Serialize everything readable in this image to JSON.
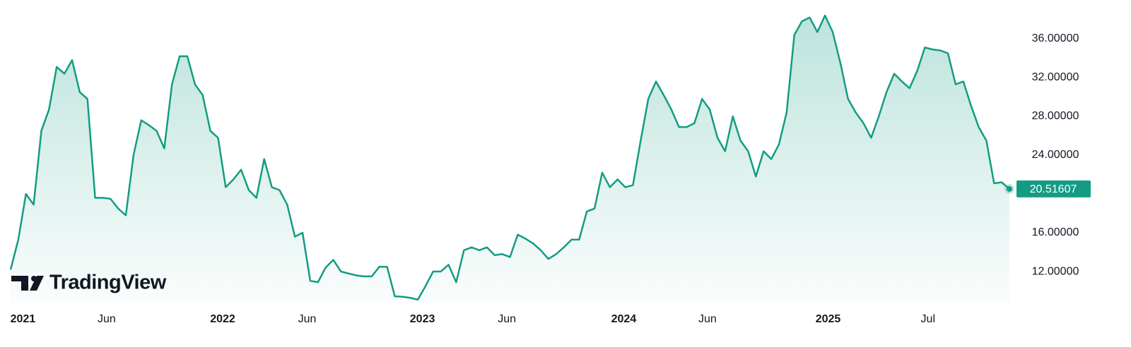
{
  "chart_data": {
    "type": "line",
    "watermark": "TradingView",
    "color": "#139c83",
    "values": [
      12.2,
      15.3,
      20.0,
      18.9,
      26.5,
      28.7,
      33.1,
      32.4,
      33.8,
      30.5,
      29.8,
      19.6,
      19.6,
      19.5,
      18.5,
      17.8,
      24.0,
      27.6,
      27.1,
      26.5,
      24.7,
      31.3,
      34.2,
      34.2,
      31.3,
      30.2,
      26.5,
      25.8,
      20.7,
      21.5,
      22.5,
      20.4,
      19.6,
      23.6,
      20.7,
      20.4,
      18.9,
      15.6,
      16.0,
      11.05,
      10.9,
      12.4,
      13.2,
      12.0,
      11.8,
      11.6,
      11.5,
      11.5,
      12.5,
      12.5,
      9.45,
      9.4,
      9.3,
      9.1,
      10.5,
      12.0,
      12.0,
      12.7,
      10.9,
      14.2,
      14.5,
      14.2,
      14.5,
      13.7,
      13.8,
      13.5,
      15.8,
      15.4,
      14.9,
      14.2,
      13.3,
      13.8,
      14.5,
      15.3,
      15.3,
      18.2,
      18.5,
      22.2,
      20.7,
      21.5,
      20.7,
      20.9,
      25.5,
      29.8,
      31.6,
      30.2,
      28.7,
      26.9,
      26.9,
      27.3,
      29.8,
      28.7,
      25.8,
      24.4,
      28.0,
      25.5,
      24.4,
      21.8,
      24.4,
      23.6,
      25.1,
      28.4,
      36.4,
      37.8,
      38.2,
      36.7,
      38.4,
      36.7,
      33.5,
      29.8,
      28.4,
      27.3,
      25.8,
      28.0,
      30.5,
      32.4,
      31.6,
      30.9,
      32.7,
      35.1,
      34.9,
      34.8,
      34.5,
      31.3,
      31.6,
      29.1,
      26.9,
      25.5,
      21.1,
      21.2,
      20.51607
    ],
    "xlim": [
      0,
      130
    ],
    "xticks": [
      {
        "value": 1.6,
        "label": "2021"
      },
      {
        "value": 12.5,
        "label": "Jun"
      },
      {
        "value": 27.6,
        "label": "2022"
      },
      {
        "value": 38.6,
        "label": "Jun"
      },
      {
        "value": 53.6,
        "label": "2023"
      },
      {
        "value": 64.6,
        "label": "Jun"
      },
      {
        "value": 79.8,
        "label": "2024"
      },
      {
        "value": 90.7,
        "label": "Jun"
      },
      {
        "value": 106.4,
        "label": "2025"
      },
      {
        "value": 119.4,
        "label": "Jul"
      }
    ],
    "ylim": [
      8.73,
      40
    ],
    "yticks": [
      {
        "value": 12,
        "label": "12.00000"
      },
      {
        "value": 16,
        "label": "16.00000"
      },
      {
        "value": 20,
        "label": "20.00000"
      },
      {
        "value": 24,
        "label": "24.00000"
      },
      {
        "value": 28,
        "label": "28.00000"
      },
      {
        "value": 32,
        "label": "32.00000"
      },
      {
        "value": 36,
        "label": "36.00000"
      }
    ]
  }
}
